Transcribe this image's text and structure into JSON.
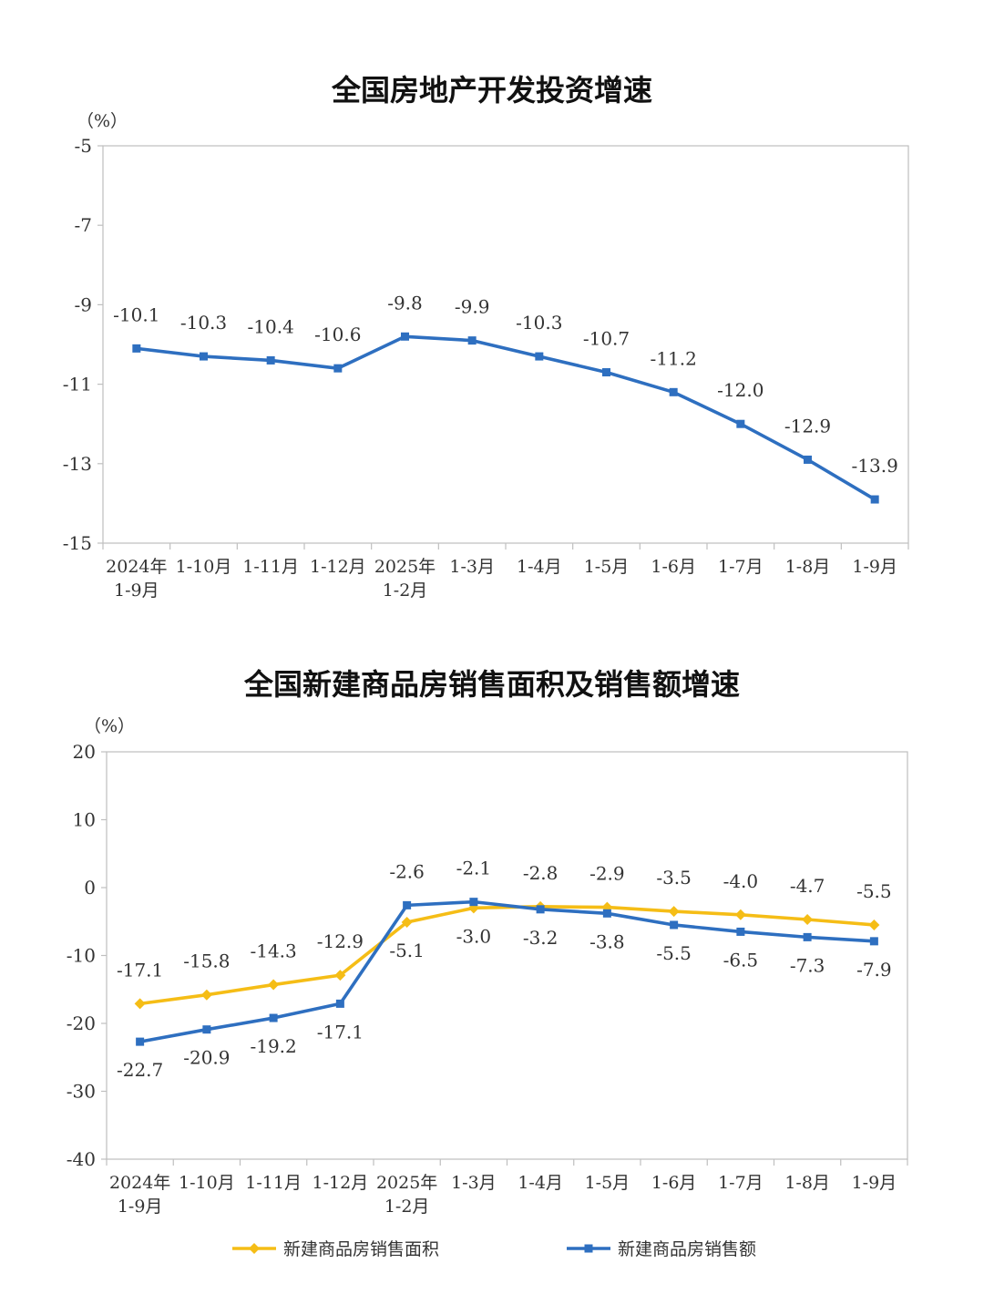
{
  "charts": [
    {
      "title": "全国房地产开发投资增速",
      "unit": "（%）",
      "type": "line",
      "categories": [
        [
          "2024年",
          "1-9月"
        ],
        [
          "1-10月"
        ],
        [
          "1-11月"
        ],
        [
          "1-12月"
        ],
        [
          "2025年",
          "1-2月"
        ],
        [
          "1-3月"
        ],
        [
          "1-4月"
        ],
        [
          "1-5月"
        ],
        [
          "1-6月"
        ],
        [
          "1-7月"
        ],
        [
          "1-8月"
        ],
        [
          "1-9月"
        ]
      ],
      "ylim": [
        -15,
        -5
      ],
      "yticks": [
        -5,
        -7,
        -9,
        -11,
        -13,
        -15
      ],
      "series": [
        {
          "name": "",
          "color": "#2e6fc0",
          "marker": "square",
          "values": [
            -10.1,
            -10.3,
            -10.4,
            -10.6,
            -9.8,
            -9.9,
            -10.3,
            -10.7,
            -11.2,
            -12.0,
            -12.9,
            -13.9
          ],
          "labels": [
            "-10.1",
            "-10.3",
            "-10.4",
            "-10.6",
            "-9.8",
            "-9.9",
            "-10.3",
            "-10.7",
            "-11.2",
            "-12.0",
            "-12.9",
            "-13.9"
          ]
        }
      ]
    },
    {
      "title": "全国新建商品房销售面积及销售额增速",
      "unit": "（%）",
      "type": "line",
      "categories": [
        [
          "2024年",
          "1-9月"
        ],
        [
          "1-10月"
        ],
        [
          "1-11月"
        ],
        [
          "1-12月"
        ],
        [
          "2025年",
          "1-2月"
        ],
        [
          "1-3月"
        ],
        [
          "1-4月"
        ],
        [
          "1-5月"
        ],
        [
          "1-6月"
        ],
        [
          "1-7月"
        ],
        [
          "1-8月"
        ],
        [
          "1-9月"
        ]
      ],
      "ylim": [
        -40,
        20
      ],
      "yticks": [
        20,
        10,
        0,
        -10,
        -20,
        -30,
        -40
      ],
      "series": [
        {
          "name": "新建商品房销售面积",
          "color": "#f5bd16",
          "marker": "diamond",
          "values": [
            -17.1,
            -15.8,
            -14.3,
            -12.9,
            -5.1,
            -3.0,
            -2.8,
            -2.9,
            -3.5,
            -4.0,
            -4.7,
            -5.5
          ],
          "labels": [
            "-17.1",
            "-15.8",
            "-14.3",
            "-12.9",
            "-5.1",
            "-3.0",
            "-2.8",
            "-2.9",
            "-3.5",
            "-4.0",
            "-4.7",
            "-5.5"
          ]
        },
        {
          "name": "新建商品房销售额",
          "color": "#2e6fc0",
          "marker": "square",
          "values": [
            -22.7,
            -20.9,
            -19.2,
            -17.1,
            -2.6,
            -2.1,
            -3.2,
            -3.8,
            -5.5,
            -6.5,
            -7.3,
            -7.9
          ],
          "labels": [
            "-22.7",
            "-20.9",
            "-19.2",
            "-17.1",
            "-2.6",
            "-2.1",
            "-3.2",
            "-3.8",
            "-5.5",
            "-6.5",
            "-7.3",
            "-7.9"
          ]
        }
      ],
      "legend_position": "bottom"
    }
  ]
}
